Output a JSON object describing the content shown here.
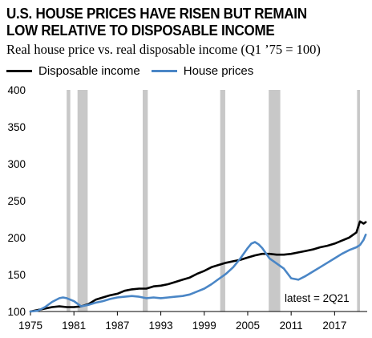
{
  "chart_data": {
    "type": "line",
    "title": "U.S. HOUSE PRICES HAVE RISEN BUT REMAIN LOW RELATIVE TO DISPOSABLE INCOME",
    "subtitle": "Real house price vs. real disposable income (Q1 ’75 = 100)",
    "annotation": "latest = 2Q21",
    "xlim": [
      1975,
      2021.5
    ],
    "ylim": [
      100,
      400
    ],
    "x_ticks": [
      1975,
      1981,
      1987,
      1993,
      1999,
      2005,
      2011,
      2017
    ],
    "y_ticks": [
      100,
      150,
      200,
      250,
      300,
      350,
      400
    ],
    "grid": false,
    "legend_position": "top-left",
    "recessions": [
      [
        1980.0,
        1980.5
      ],
      [
        1981.5,
        1982.9
      ],
      [
        1990.5,
        1991.2
      ],
      [
        2001.2,
        2001.9
      ],
      [
        2007.9,
        2009.5
      ],
      [
        2020.1,
        2020.5
      ]
    ],
    "series": [
      {
        "name": "Disposable income",
        "color": "#000000",
        "x": [
          1975,
          1976,
          1977,
          1978,
          1979,
          1980,
          1981,
          1982,
          1983,
          1984,
          1985,
          1986,
          1987,
          1988,
          1989,
          1990,
          1991,
          1992,
          1993,
          1994,
          1995,
          1996,
          1997,
          1998,
          1999,
          2000,
          2001,
          2002,
          2003,
          2004,
          2005,
          2006,
          2007,
          2008,
          2009,
          2010,
          2011,
          2012,
          2013,
          2014,
          2015,
          2016,
          2017,
          2018,
          2019,
          2020,
          2020.5,
          2021,
          2021.3
        ],
        "values": [
          100,
          102,
          104,
          106,
          107,
          106,
          106,
          107,
          110,
          116,
          119,
          122,
          124,
          128,
          130,
          131,
          131,
          134,
          135,
          137,
          140,
          143,
          146,
          151,
          155,
          160,
          163,
          166,
          168,
          170,
          173,
          176,
          178,
          178,
          177,
          177,
          178,
          180,
          182,
          184,
          187,
          189,
          192,
          196,
          200,
          207,
          222,
          219,
          221
        ]
      },
      {
        "name": "House prices",
        "color": "#4a86c6",
        "x": [
          1975,
          1976,
          1977,
          1978,
          1979,
          1979.5,
          1980,
          1981,
          1982,
          1983,
          1984,
          1985,
          1986,
          1987,
          1988,
          1989,
          1990,
          1991,
          1992,
          1993,
          1994,
          1995,
          1996,
          1997,
          1998,
          1999,
          2000,
          2001,
          2002,
          2003,
          2004,
          2005,
          2005.5,
          2006,
          2006.5,
          2007,
          2008,
          2009,
          2010,
          2011,
          2012,
          2013,
          2014,
          2015,
          2016,
          2017,
          2018,
          2019,
          2020,
          2020.5,
          2021,
          2021.3
        ],
        "values": [
          100,
          101,
          106,
          113,
          118,
          119,
          118,
          114,
          107,
          109,
          112,
          114,
          117,
          119,
          120,
          121,
          120,
          118,
          119,
          118,
          119,
          120,
          121,
          123,
          127,
          131,
          137,
          144,
          151,
          160,
          172,
          186,
          192,
          194,
          191,
          186,
          172,
          165,
          158,
          145,
          143,
          148,
          154,
          160,
          166,
          172,
          178,
          183,
          187,
          190,
          197,
          204
        ]
      }
    ]
  }
}
